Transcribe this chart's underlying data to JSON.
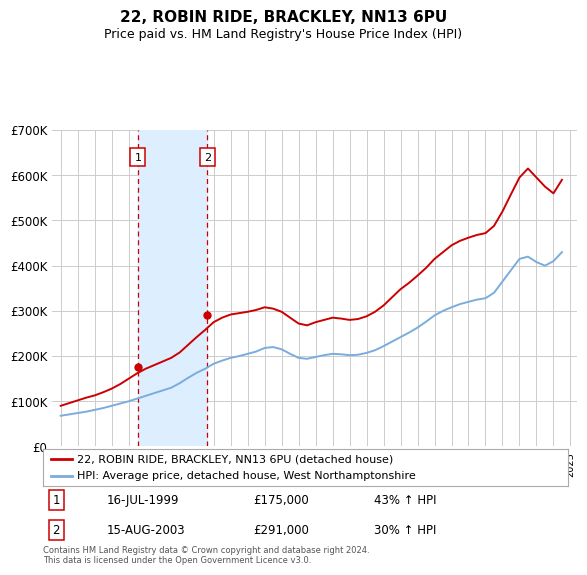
{
  "title": "22, ROBIN RIDE, BRACKLEY, NN13 6PU",
  "subtitle": "Price paid vs. HM Land Registry's House Price Index (HPI)",
  "footer": "Contains HM Land Registry data © Crown copyright and database right 2024.\nThis data is licensed under the Open Government Licence v3.0.",
  "legend_line1": "22, ROBIN RIDE, BRACKLEY, NN13 6PU (detached house)",
  "legend_line2": "HPI: Average price, detached house, West Northamptonshire",
  "sale1_label": "1",
  "sale2_label": "2",
  "sale1_date": "16-JUL-1999",
  "sale1_price": "£175,000",
  "sale1_hpi": "43% ↑ HPI",
  "sale2_date": "15-AUG-2003",
  "sale2_price": "£291,000",
  "sale2_hpi": "30% ↑ HPI",
  "sale1_year": 1999.54,
  "sale2_year": 2003.62,
  "sale1_value": 175000,
  "sale2_value": 291000,
  "red_color": "#cc0000",
  "blue_color": "#7aacdc",
  "shade_color": "#ddeeff",
  "vline_color": "#cc0000",
  "grid_color": "#cccccc",
  "bg_color": "#ffffff",
  "years": [
    1995.0,
    1995.5,
    1996.0,
    1996.5,
    1997.0,
    1997.5,
    1998.0,
    1998.5,
    1999.0,
    1999.5,
    2000.0,
    2000.5,
    2001.0,
    2001.5,
    2002.0,
    2002.5,
    2003.0,
    2003.5,
    2004.0,
    2004.5,
    2005.0,
    2005.5,
    2006.0,
    2006.5,
    2007.0,
    2007.5,
    2008.0,
    2008.5,
    2009.0,
    2009.5,
    2010.0,
    2010.5,
    2011.0,
    2011.5,
    2012.0,
    2012.5,
    2013.0,
    2013.5,
    2014.0,
    2014.5,
    2015.0,
    2015.5,
    2016.0,
    2016.5,
    2017.0,
    2017.5,
    2018.0,
    2018.5,
    2019.0,
    2019.5,
    2020.0,
    2020.5,
    2021.0,
    2021.5,
    2022.0,
    2022.5,
    2023.0,
    2023.5,
    2024.0,
    2024.5
  ],
  "hpi_values": [
    68000,
    71000,
    74000,
    77000,
    81000,
    85000,
    90000,
    95000,
    100000,
    106000,
    112000,
    118000,
    124000,
    130000,
    140000,
    152000,
    163000,
    172000,
    183000,
    190000,
    196000,
    200000,
    205000,
    210000,
    218000,
    220000,
    215000,
    205000,
    196000,
    194000,
    198000,
    202000,
    205000,
    204000,
    202000,
    203000,
    207000,
    213000,
    222000,
    232000,
    242000,
    252000,
    263000,
    276000,
    290000,
    300000,
    308000,
    315000,
    320000,
    325000,
    328000,
    340000,
    365000,
    390000,
    415000,
    420000,
    408000,
    400000,
    410000,
    430000
  ],
  "red_values": [
    90000,
    96000,
    102000,
    108000,
    113000,
    120000,
    128000,
    138000,
    150000,
    162000,
    172000,
    180000,
    188000,
    196000,
    208000,
    225000,
    242000,
    258000,
    275000,
    285000,
    292000,
    295000,
    298000,
    302000,
    308000,
    305000,
    298000,
    285000,
    272000,
    268000,
    275000,
    280000,
    285000,
    283000,
    280000,
    282000,
    288000,
    298000,
    312000,
    330000,
    348000,
    362000,
    378000,
    395000,
    415000,
    430000,
    445000,
    455000,
    462000,
    468000,
    472000,
    488000,
    520000,
    558000,
    595000,
    615000,
    595000,
    575000,
    560000,
    590000
  ],
  "ylim_max": 700000,
  "ylim_min": 0,
  "xlim_min": 1994.5,
  "xlim_max": 2025.4
}
